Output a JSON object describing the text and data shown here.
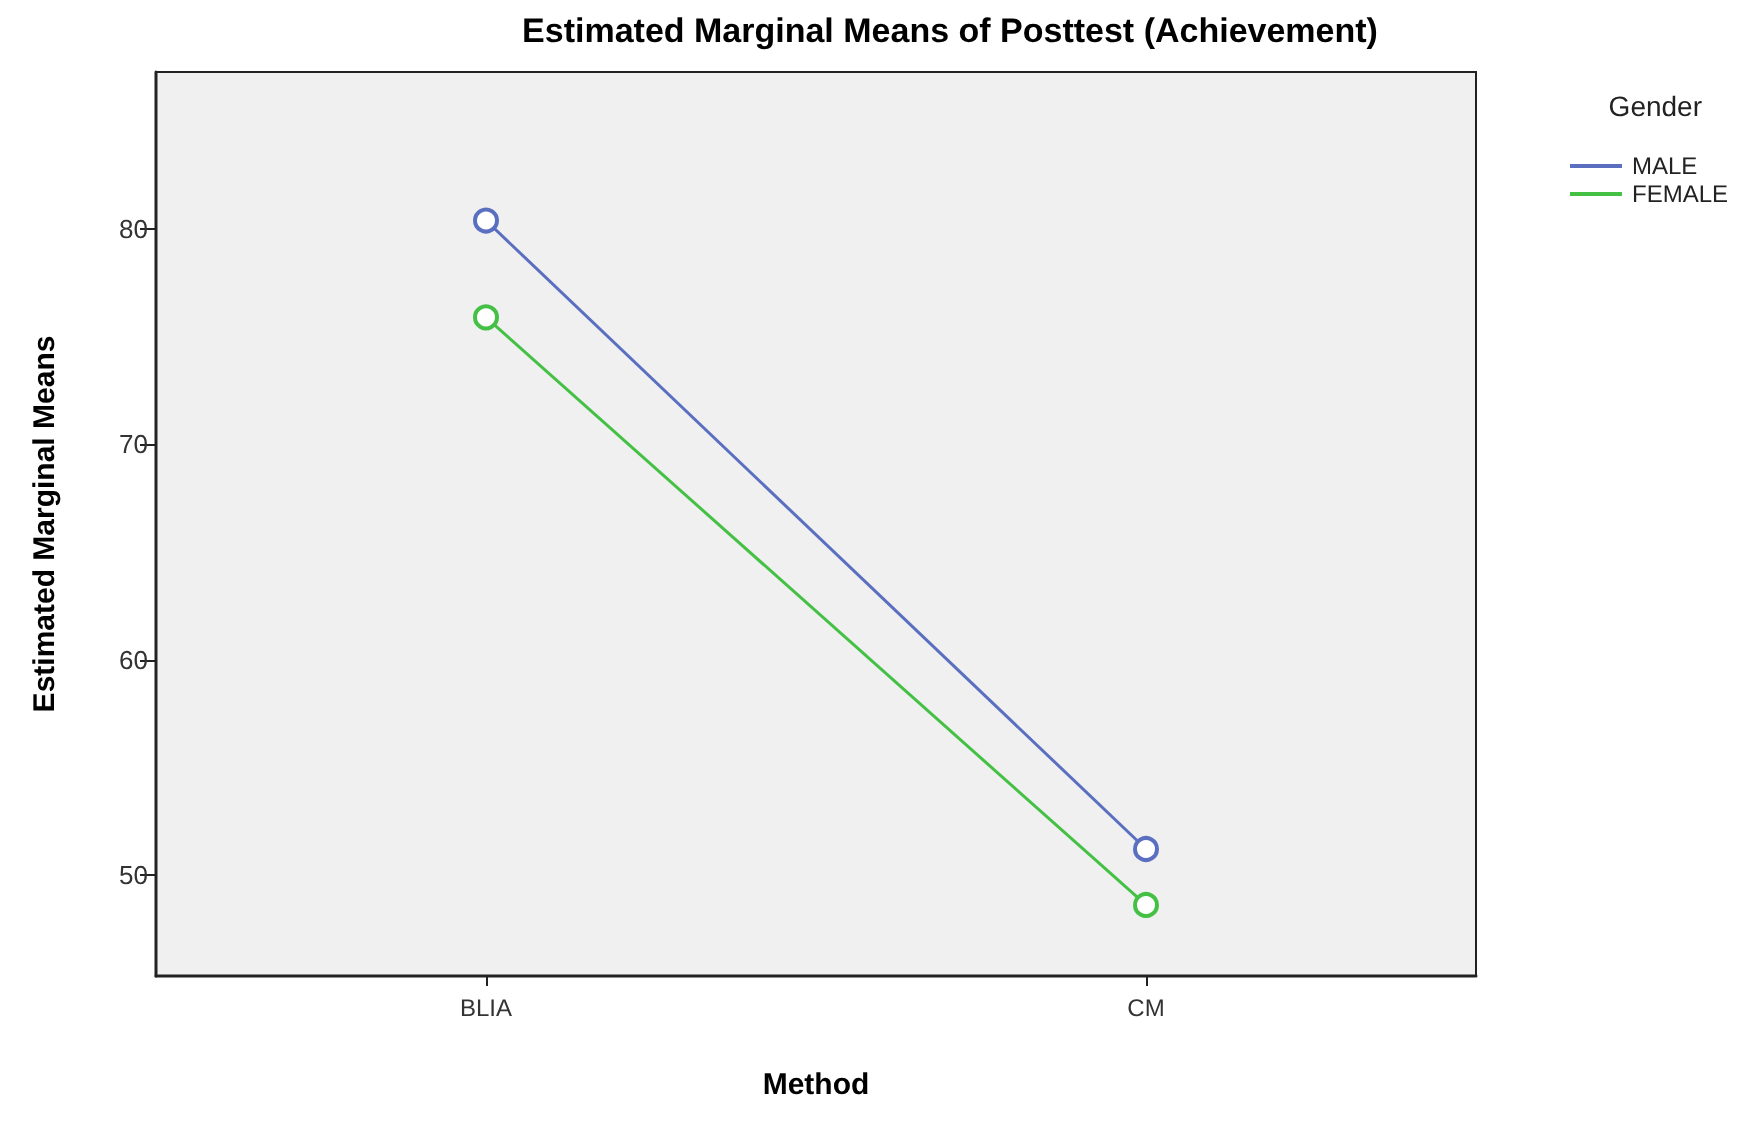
{
  "chart_data": {
    "type": "line",
    "title": "Estimated Marginal Means of Posttest (Achievement)",
    "xlabel": "Method",
    "ylabel": "Estimated Marginal Means",
    "legend_title": "Gender",
    "categories": [
      "BLIA",
      "CM"
    ],
    "series": [
      {
        "name": "MALE",
        "color": "#5b6fc0",
        "values": [
          80.4,
          51.2
        ]
      },
      {
        "name": "FEMALE",
        "color": "#44c144",
        "values": [
          75.9,
          48.6
        ]
      }
    ],
    "ylim": [
      45.3,
      87.3
    ],
    "yticks": [
      50,
      60,
      70,
      80
    ],
    "grid": false,
    "legend": "top right",
    "marker": "circle",
    "line_style": "solid"
  }
}
